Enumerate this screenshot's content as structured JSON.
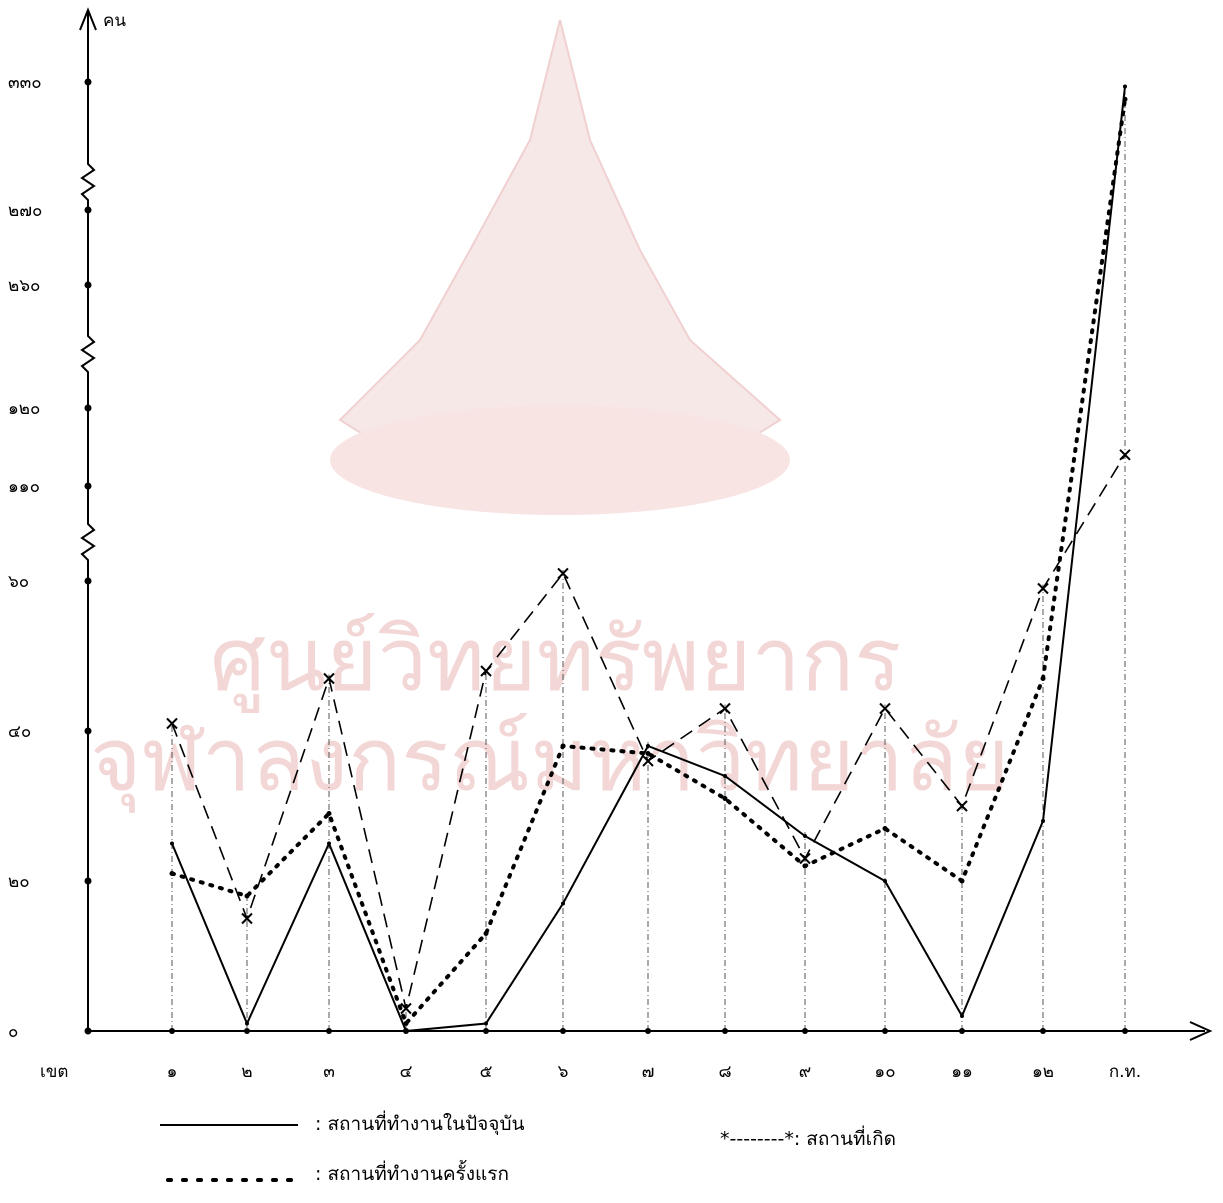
{
  "watermark": {
    "line1": "ศูนย์วิทยทรัพยากร",
    "line2": "จุฬาลงกรณ์มหาวิทยาลัย",
    "color": "#f3d6d6"
  },
  "chart_data": {
    "type": "line",
    "y_unit_label": "คน",
    "x_axis_label": "เขต",
    "categories": [
      "๑",
      "๒",
      "๓",
      "๔",
      "๕",
      "๖",
      "๗",
      "๘",
      "๙",
      "๑๐",
      "๑๑",
      "๑๒",
      "ก.ท."
    ],
    "y_ticks": [
      "๐",
      "๒๐",
      "๔๐",
      "๖๐",
      "๑๑๐",
      "๑๒๐",
      "๒๖๐",
      "๒๗๐",
      "๓๓๐"
    ],
    "y_axis_breaks": [
      "between ๖๐ and ๑๑๐",
      "between ๑๒๐ and ๒๖๐",
      "between ๒๗๐ and ๓๓๐"
    ],
    "grid": "vertical dash-dot guide lines at each category",
    "legend_position": "bottom",
    "series": [
      {
        "name": "สถานที่ทำงานในปัจจุบัน",
        "style": "solid",
        "legend_label": ": สถานที่ทำงานในปัจจุบัน",
        "values": [
          25,
          1,
          25,
          0,
          1,
          17,
          38,
          34,
          26,
          20,
          2,
          28,
          328
        ]
      },
      {
        "name": "สถานที่ทำงานครั้งแรก",
        "style": "dotted",
        "legend_label": ": สถานที่ทำงานครั้งแรก",
        "values": [
          21,
          18,
          29,
          1,
          13,
          38,
          37,
          31,
          22,
          27,
          20,
          47,
          322
        ]
      },
      {
        "name": "สถานที่เกิด",
        "style": "dashed",
        "legend_label": "*--------*: สถานที่เกิด",
        "values": [
          41,
          15,
          47,
          3,
          48,
          64,
          36,
          43,
          23,
          43,
          30,
          59,
          114
        ]
      }
    ]
  }
}
